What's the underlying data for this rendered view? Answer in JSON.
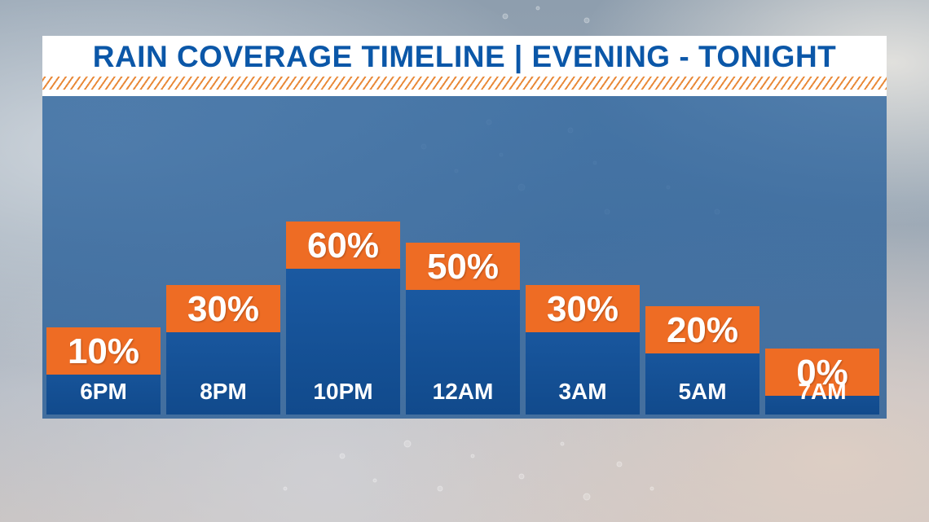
{
  "title": "RAIN COVERAGE TIMELINE | EVENING - TONIGHT",
  "colors": {
    "title_text": "#0b57a8",
    "accent_orange": "#ee6c24",
    "bar_blue": "#1d5ea8"
  },
  "chart_data": {
    "type": "bar",
    "title": "RAIN COVERAGE TIMELINE | EVENING - TONIGHT",
    "categories": [
      "6PM",
      "8PM",
      "10PM",
      "12AM",
      "3AM",
      "5AM",
      "7AM"
    ],
    "values": [
      10,
      30,
      60,
      50,
      30,
      20,
      0
    ],
    "value_labels": [
      "10%",
      "30%",
      "60%",
      "50%",
      "30%",
      "20%",
      "0%"
    ],
    "ylim": [
      0,
      100
    ],
    "grid": false,
    "legend": "none"
  }
}
